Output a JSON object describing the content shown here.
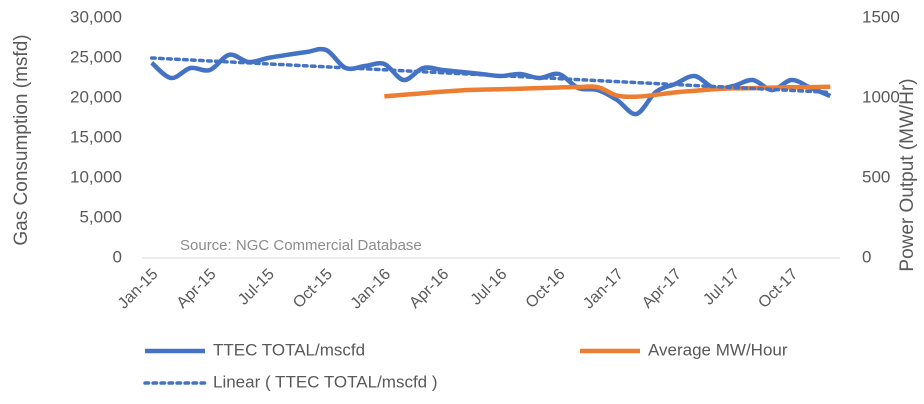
{
  "chart_data": {
    "type": "line",
    "categories": [
      "Jan-15",
      null,
      null,
      "Apr-15",
      null,
      null,
      "Jul-15",
      null,
      null,
      "Oct-15",
      null,
      null,
      "Jan-16",
      null,
      null,
      "Apr-16",
      null,
      null,
      "Jul-16",
      null,
      null,
      "Oct-16",
      null,
      null,
      "Jan-17",
      null,
      null,
      "Apr-17",
      null,
      null,
      "Jul-17",
      null,
      null,
      "Oct-17",
      null,
      null
    ],
    "series": [
      {
        "name": "TTEC TOTAL/mscfd",
        "color": "#4472c4",
        "style": "solid",
        "values": [
          24400,
          22500,
          23750,
          23500,
          25400,
          24500,
          25000,
          25400,
          25750,
          26000,
          23750,
          24000,
          24250,
          22250,
          23750,
          23500,
          23250,
          23000,
          22750,
          23000,
          22500,
          23000,
          21250,
          21000,
          19750,
          18000,
          20750,
          21750,
          22750,
          21250,
          21500,
          22250,
          21000,
          22250,
          21250,
          20250
        ]
      },
      {
        "name": "Average MW/Hour",
        "color": "#ed7d31",
        "style": "solid",
        "axis": "y2",
        "values": [
          null,
          null,
          null,
          null,
          null,
          null,
          null,
          null,
          null,
          null,
          null,
          null,
          1010,
          1020,
          1030,
          1040,
          1048,
          1052,
          1055,
          1058,
          1062,
          1066,
          1069,
          1068,
          1015,
          1008,
          1020,
          1035,
          1045,
          1055,
          1060,
          1062,
          1065,
          1067,
          1068,
          1070
        ]
      },
      {
        "name": "Linear ( TTEC TOTAL/mscfd )",
        "color": "#4472c4",
        "style": "dotted",
        "values": [
          25000,
          24877,
          24754,
          24631,
          24509,
          24386,
          24263,
          24140,
          24017,
          23894,
          23771,
          23649,
          23526,
          23403,
          23280,
          23157,
          23034,
          22911,
          22789,
          22666,
          22543,
          22420,
          22297,
          22174,
          22051,
          21929,
          21806,
          21683,
          21560,
          21437,
          21314,
          21191,
          21069,
          20946,
          20823,
          20700
        ]
      }
    ],
    "ylabel": "Gas Consumption (msfd)",
    "y2label": "Power Output (MW/Hr)",
    "annotation": "Source: NGC Commercial Database",
    "ylim": [
      0,
      30000
    ],
    "yticks": [
      0,
      {
        "value": 5000,
        "label": "5,000"
      },
      {
        "value": 10000,
        "label": "10,000"
      },
      {
        "value": 15000,
        "label": "15,000"
      },
      {
        "value": 20000,
        "label": "20,000"
      },
      {
        "value": 25000,
        "label": "25,000"
      },
      {
        "value": 30000,
        "label": "30,000"
      }
    ],
    "y2lim": [
      0,
      1500
    ],
    "y2ticks": [
      0,
      500,
      1000,
      1500
    ],
    "legend": "bottom"
  }
}
